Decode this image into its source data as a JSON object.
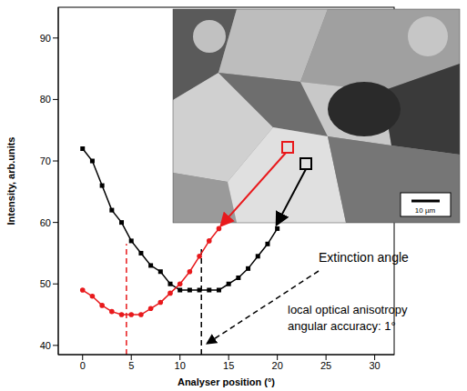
{
  "chart_data": {
    "type": "line",
    "x_label": "Analyser position (°)",
    "y_label": "Intensity, arb.units",
    "xlim": [
      -2.5,
      32
    ],
    "xticks": [
      0,
      5,
      10,
      15,
      20,
      25,
      30
    ],
    "ylim": [
      38.5,
      95
    ],
    "yticks": [
      40,
      50,
      60,
      70,
      80,
      90
    ],
    "series": [
      {
        "color": "#000000",
        "marker": "square",
        "line_style": "solid",
        "x": [
          0,
          1,
          2,
          3,
          4,
          5,
          6,
          7,
          8,
          9,
          10,
          11,
          12,
          13,
          14,
          15,
          16,
          17,
          18,
          19,
          20
        ],
        "values": [
          72,
          70,
          66,
          62,
          60,
          57,
          55,
          53,
          52,
          50,
          49,
          49,
          49,
          49,
          49,
          50,
          51,
          52.5,
          54.5,
          56.5,
          59
        ]
      },
      {
        "color": "#e8191c",
        "marker": "circle",
        "line_style": "solid",
        "x": [
          0,
          1,
          2,
          3,
          4,
          5,
          6,
          7,
          8,
          9,
          10,
          11,
          12,
          13,
          14
        ],
        "values": [
          49,
          48,
          46.5,
          45.5,
          45,
          45,
          45,
          46,
          47,
          48.5,
          50,
          52,
          54.5,
          57,
          59
        ]
      }
    ],
    "reference_lines": [
      {
        "x": 4.5,
        "y_top": 56.5,
        "color": "#e8191c",
        "line_style": "dashed"
      },
      {
        "x": 12.2,
        "y_top": 56,
        "color": "#000000",
        "line_style": "dashed"
      }
    ],
    "annotations": [
      "Extinction angle",
      "local optical anisotropy",
      "angular accuracy: 1°"
    ],
    "inset": {
      "scale_bar": "10 µm"
    }
  }
}
